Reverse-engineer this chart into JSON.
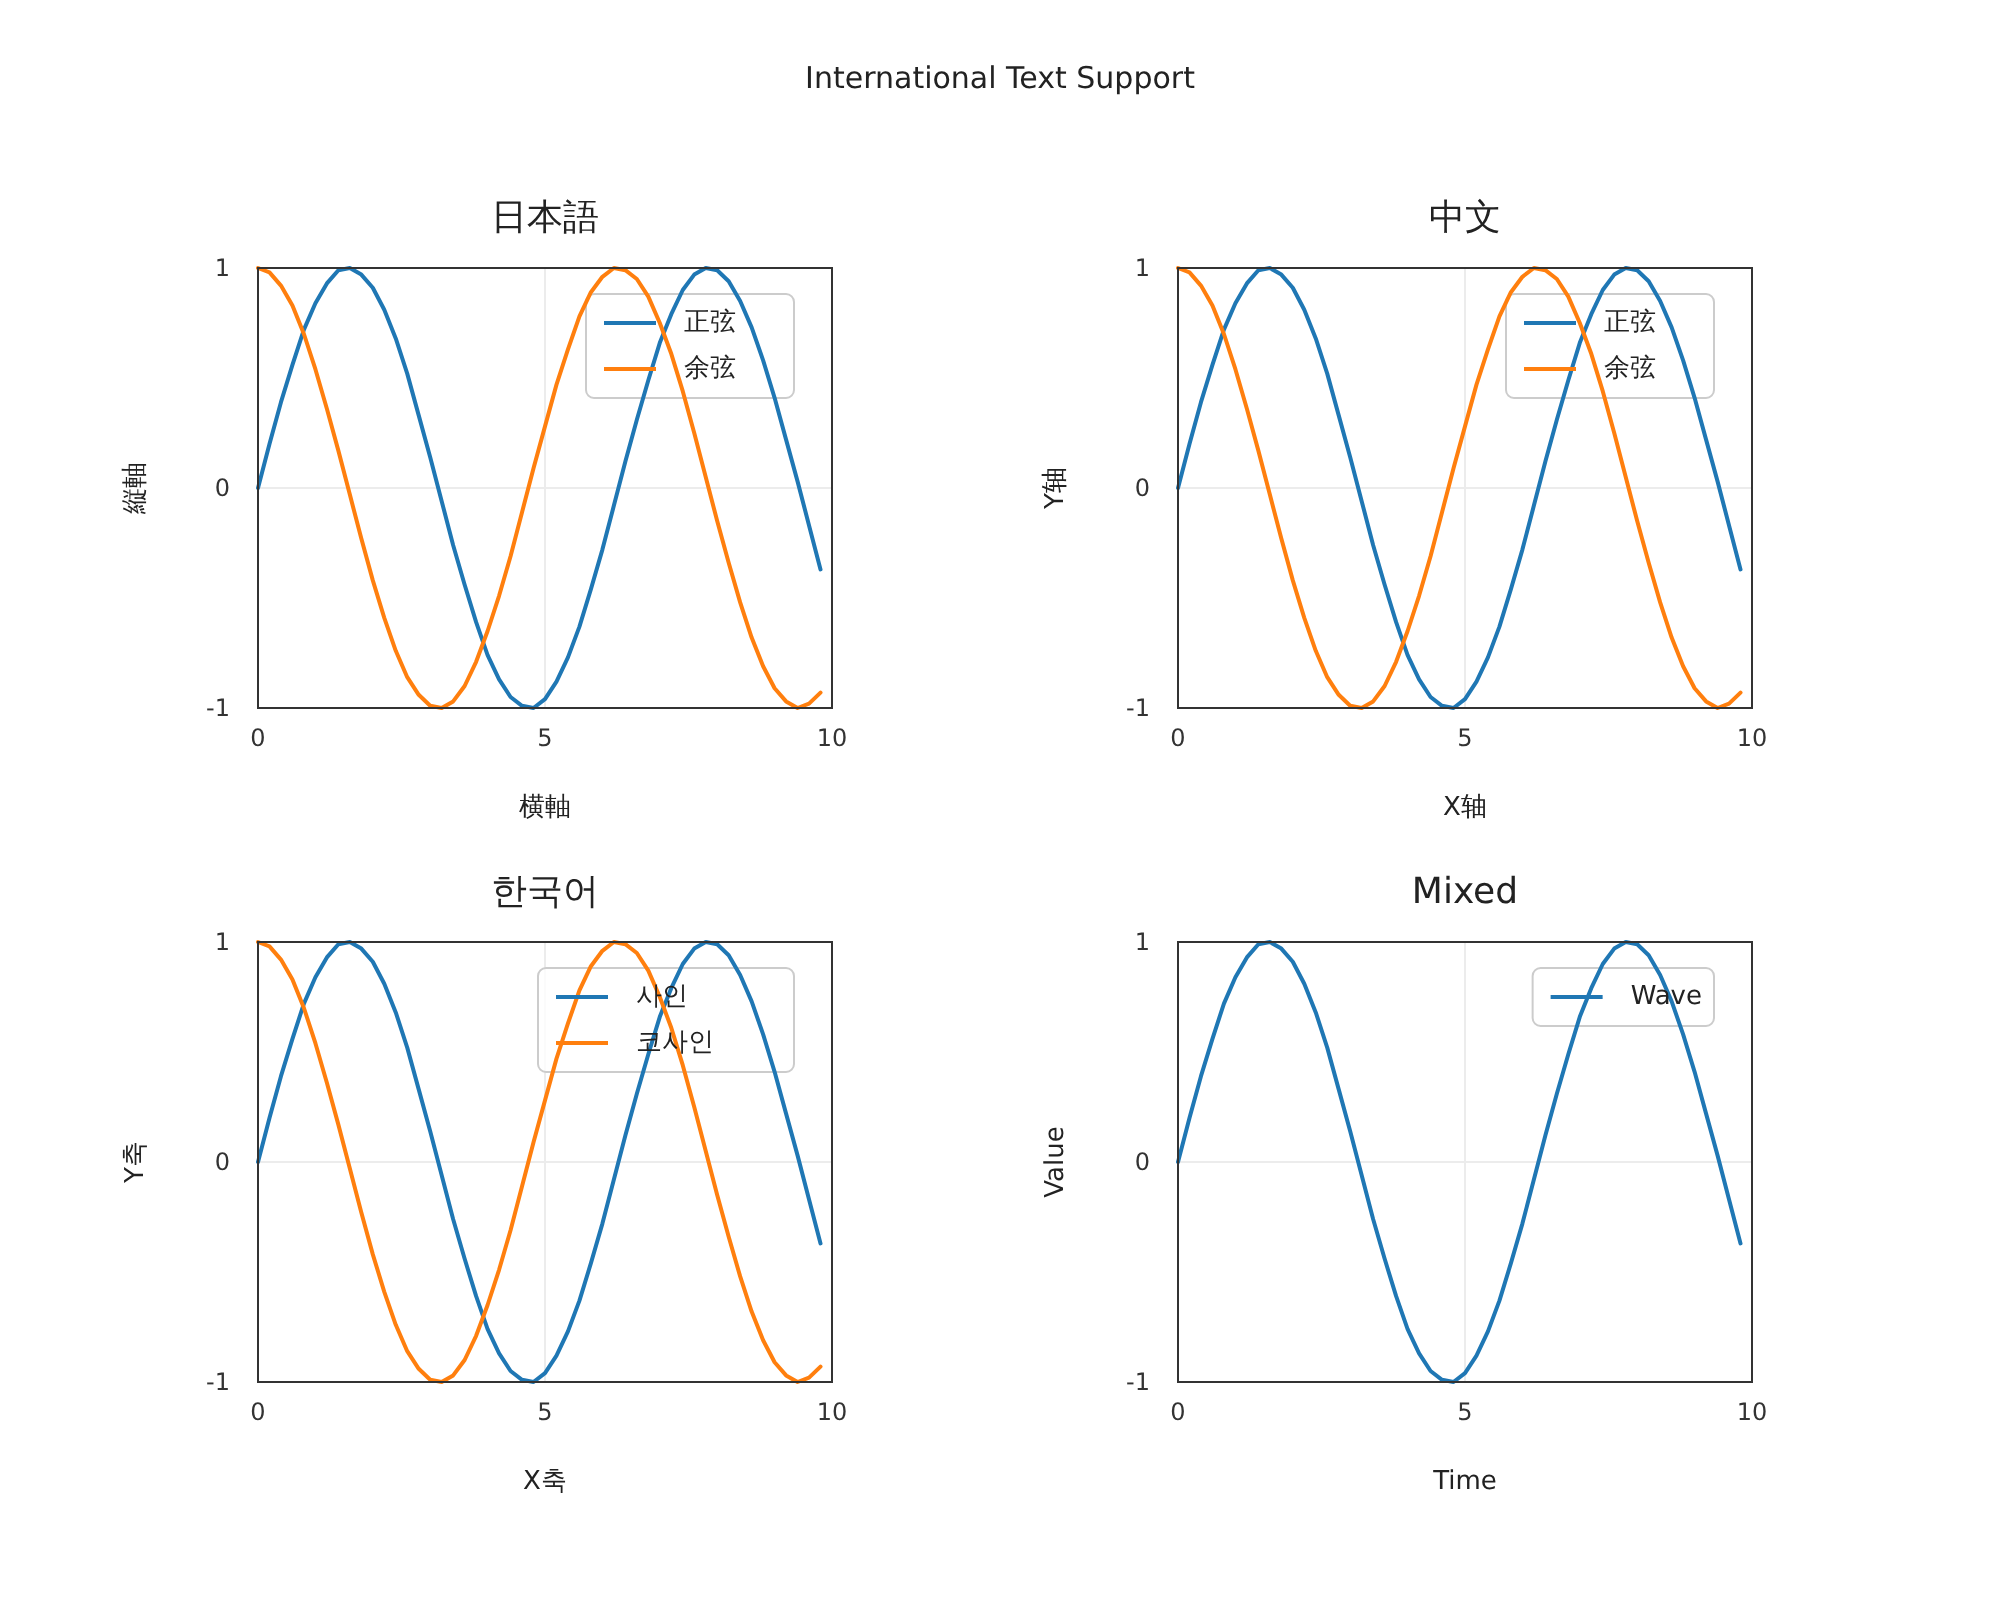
{
  "chart_data": [
    {
      "type": "other",
      "title": "International Text Support"
    },
    {
      "type": "line",
      "title": "日本語",
      "xlabel": "横軸",
      "ylabel": "縦軸",
      "x": [
        0,
        0.2,
        0.4,
        0.6,
        0.8,
        1,
        1.2,
        1.4,
        1.6,
        1.8,
        2,
        2.2,
        2.4,
        2.6,
        2.8,
        3,
        3.2,
        3.4,
        3.6,
        3.8,
        4,
        4.2,
        4.4,
        4.6,
        4.8,
        5,
        5.2,
        5.4,
        5.6,
        5.8,
        6,
        6.2,
        6.4,
        6.6,
        6.8,
        7,
        7.2,
        7.4,
        7.6,
        7.8,
        8,
        8.2,
        8.4,
        8.6,
        8.8,
        9,
        9.2,
        9.4,
        9.6,
        9.8
      ],
      "series": [
        {
          "name": "正弦",
          "color": "#1f77b4",
          "values": [
            0,
            0.2,
            0.39,
            0.56,
            0.72,
            0.84,
            0.93,
            0.99,
            1,
            0.97,
            0.91,
            0.81,
            0.68,
            0.52,
            0.33,
            0.14,
            -0.06,
            -0.26,
            -0.44,
            -0.61,
            -0.76,
            -0.87,
            -0.95,
            -0.99,
            -1,
            -0.96,
            -0.88,
            -0.77,
            -0.63,
            -0.46,
            -0.28,
            -0.08,
            0.12,
            0.31,
            0.49,
            0.66,
            0.79,
            0.9,
            0.97,
            1,
            0.99,
            0.94,
            0.85,
            0.73,
            0.58,
            0.41,
            0.22,
            0.03,
            -0.17,
            -0.37
          ]
        },
        {
          "name": "余弦",
          "color": "#ff7f0e",
          "values": [
            1,
            0.98,
            0.92,
            0.83,
            0.7,
            0.54,
            0.36,
            0.17,
            -0.03,
            -0.23,
            -0.42,
            -0.59,
            -0.74,
            -0.86,
            -0.94,
            -0.99,
            -1,
            -0.97,
            -0.9,
            -0.79,
            -0.65,
            -0.49,
            -0.31,
            -0.11,
            0.09,
            0.28,
            0.47,
            0.63,
            0.78,
            0.89,
            0.96,
            1,
            0.99,
            0.95,
            0.87,
            0.75,
            0.61,
            0.44,
            0.25,
            0.05,
            -0.15,
            -0.34,
            -0.52,
            -0.68,
            -0.81,
            -0.91,
            -0.97,
            -1,
            -0.98,
            -0.93
          ]
        }
      ],
      "xlim": [
        0,
        10
      ],
      "ylim": [
        -1,
        1
      ],
      "xticks": [
        0,
        5,
        10
      ],
      "yticks": [
        -1,
        0,
        1
      ],
      "grid": true,
      "legend": "top right"
    },
    {
      "type": "line",
      "title": "中文",
      "xlabel": "X轴",
      "ylabel": "Y轴",
      "x": [
        0,
        0.2,
        0.4,
        0.6,
        0.8,
        1,
        1.2,
        1.4,
        1.6,
        1.8,
        2,
        2.2,
        2.4,
        2.6,
        2.8,
        3,
        3.2,
        3.4,
        3.6,
        3.8,
        4,
        4.2,
        4.4,
        4.6,
        4.8,
        5,
        5.2,
        5.4,
        5.6,
        5.8,
        6,
        6.2,
        6.4,
        6.6,
        6.8,
        7,
        7.2,
        7.4,
        7.6,
        7.8,
        8,
        8.2,
        8.4,
        8.6,
        8.8,
        9,
        9.2,
        9.4,
        9.6,
        9.8
      ],
      "series": [
        {
          "name": "正弦",
          "color": "#1f77b4",
          "values": [
            0,
            0.2,
            0.39,
            0.56,
            0.72,
            0.84,
            0.93,
            0.99,
            1,
            0.97,
            0.91,
            0.81,
            0.68,
            0.52,
            0.33,
            0.14,
            -0.06,
            -0.26,
            -0.44,
            -0.61,
            -0.76,
            -0.87,
            -0.95,
            -0.99,
            -1,
            -0.96,
            -0.88,
            -0.77,
            -0.63,
            -0.46,
            -0.28,
            -0.08,
            0.12,
            0.31,
            0.49,
            0.66,
            0.79,
            0.9,
            0.97,
            1,
            0.99,
            0.94,
            0.85,
            0.73,
            0.58,
            0.41,
            0.22,
            0.03,
            -0.17,
            -0.37
          ]
        },
        {
          "name": "余弦",
          "color": "#ff7f0e",
          "values": [
            1,
            0.98,
            0.92,
            0.83,
            0.7,
            0.54,
            0.36,
            0.17,
            -0.03,
            -0.23,
            -0.42,
            -0.59,
            -0.74,
            -0.86,
            -0.94,
            -0.99,
            -1,
            -0.97,
            -0.9,
            -0.79,
            -0.65,
            -0.49,
            -0.31,
            -0.11,
            0.09,
            0.28,
            0.47,
            0.63,
            0.78,
            0.89,
            0.96,
            1,
            0.99,
            0.95,
            0.87,
            0.75,
            0.61,
            0.44,
            0.25,
            0.05,
            -0.15,
            -0.34,
            -0.52,
            -0.68,
            -0.81,
            -0.91,
            -0.97,
            -1,
            -0.98,
            -0.93
          ]
        }
      ],
      "xlim": [
        0,
        10
      ],
      "ylim": [
        -1,
        1
      ],
      "xticks": [
        0,
        5,
        10
      ],
      "yticks": [
        -1,
        0,
        1
      ],
      "grid": true,
      "legend": "top right"
    },
    {
      "type": "line",
      "title": "한국어",
      "xlabel": "X축",
      "ylabel": "Y축",
      "x": [
        0,
        0.2,
        0.4,
        0.6,
        0.8,
        1,
        1.2,
        1.4,
        1.6,
        1.8,
        2,
        2.2,
        2.4,
        2.6,
        2.8,
        3,
        3.2,
        3.4,
        3.6,
        3.8,
        4,
        4.2,
        4.4,
        4.6,
        4.8,
        5,
        5.2,
        5.4,
        5.6,
        5.8,
        6,
        6.2,
        6.4,
        6.6,
        6.8,
        7,
        7.2,
        7.4,
        7.6,
        7.8,
        8,
        8.2,
        8.4,
        8.6,
        8.8,
        9,
        9.2,
        9.4,
        9.6,
        9.8
      ],
      "series": [
        {
          "name": "사인",
          "color": "#1f77b4",
          "values": [
            0,
            0.2,
            0.39,
            0.56,
            0.72,
            0.84,
            0.93,
            0.99,
            1,
            0.97,
            0.91,
            0.81,
            0.68,
            0.52,
            0.33,
            0.14,
            -0.06,
            -0.26,
            -0.44,
            -0.61,
            -0.76,
            -0.87,
            -0.95,
            -0.99,
            -1,
            -0.96,
            -0.88,
            -0.77,
            -0.63,
            -0.46,
            -0.28,
            -0.08,
            0.12,
            0.31,
            0.49,
            0.66,
            0.79,
            0.9,
            0.97,
            1,
            0.99,
            0.94,
            0.85,
            0.73,
            0.58,
            0.41,
            0.22,
            0.03,
            -0.17,
            -0.37
          ]
        },
        {
          "name": "코사인",
          "color": "#ff7f0e",
          "values": [
            1,
            0.98,
            0.92,
            0.83,
            0.7,
            0.54,
            0.36,
            0.17,
            -0.03,
            -0.23,
            -0.42,
            -0.59,
            -0.74,
            -0.86,
            -0.94,
            -0.99,
            -1,
            -0.97,
            -0.9,
            -0.79,
            -0.65,
            -0.49,
            -0.31,
            -0.11,
            0.09,
            0.28,
            0.47,
            0.63,
            0.78,
            0.89,
            0.96,
            1,
            0.99,
            0.95,
            0.87,
            0.75,
            0.61,
            0.44,
            0.25,
            0.05,
            -0.15,
            -0.34,
            -0.52,
            -0.68,
            -0.81,
            -0.91,
            -0.97,
            -1,
            -0.98,
            -0.93
          ]
        }
      ],
      "xlim": [
        0,
        10
      ],
      "ylim": [
        -1,
        1
      ],
      "xticks": [
        0,
        5,
        10
      ],
      "yticks": [
        -1,
        0,
        1
      ],
      "grid": true,
      "legend": "top right"
    },
    {
      "type": "line",
      "title": "Mixed",
      "xlabel": "Time",
      "ylabel": "Value",
      "x": [
        0,
        0.2,
        0.4,
        0.6,
        0.8,
        1,
        1.2,
        1.4,
        1.6,
        1.8,
        2,
        2.2,
        2.4,
        2.6,
        2.8,
        3,
        3.2,
        3.4,
        3.6,
        3.8,
        4,
        4.2,
        4.4,
        4.6,
        4.8,
        5,
        5.2,
        5.4,
        5.6,
        5.8,
        6,
        6.2,
        6.4,
        6.6,
        6.8,
        7,
        7.2,
        7.4,
        7.6,
        7.8,
        8,
        8.2,
        8.4,
        8.6,
        8.8,
        9,
        9.2,
        9.4,
        9.6,
        9.8
      ],
      "series": [
        {
          "name": "Wave",
          "color": "#1f77b4",
          "values": [
            0,
            0.2,
            0.39,
            0.56,
            0.72,
            0.84,
            0.93,
            0.99,
            1,
            0.97,
            0.91,
            0.81,
            0.68,
            0.52,
            0.33,
            0.14,
            -0.06,
            -0.26,
            -0.44,
            -0.61,
            -0.76,
            -0.87,
            -0.95,
            -0.99,
            -1,
            -0.96,
            -0.88,
            -0.77,
            -0.63,
            -0.46,
            -0.28,
            -0.08,
            0.12,
            0.31,
            0.49,
            0.66,
            0.79,
            0.9,
            0.97,
            1,
            0.99,
            0.94,
            0.85,
            0.73,
            0.58,
            0.41,
            0.22,
            0.03,
            -0.17,
            -0.37
          ]
        }
      ],
      "xlim": [
        0,
        10
      ],
      "ylim": [
        -1,
        1
      ],
      "xticks": [
        0,
        5,
        10
      ],
      "yticks": [
        -1,
        0,
        1
      ],
      "grid": true,
      "legend": "top right"
    }
  ]
}
